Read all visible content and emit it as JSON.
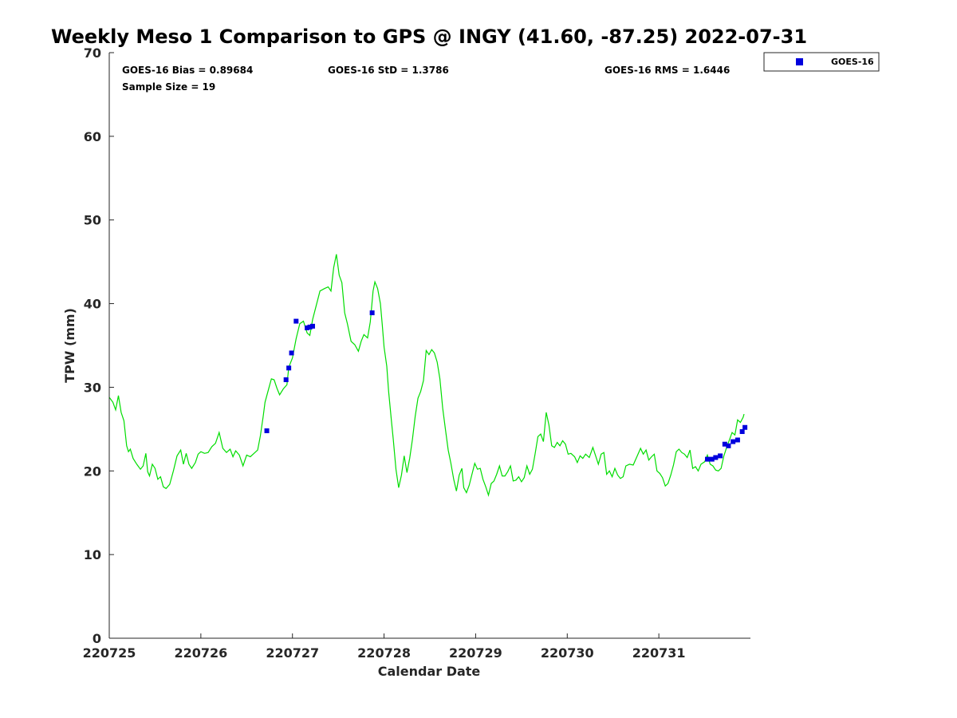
{
  "chart_data": {
    "type": "line",
    "title": "Weekly Meso 1 Comparison to GPS @ INGY (41.60, -87.25) 2022-07-31",
    "xlabel": "Calendar Date",
    "ylabel": "TPW (mm)",
    "ylim": [
      0,
      70
    ],
    "yticks": [
      0,
      10,
      20,
      30,
      40,
      50,
      60,
      70
    ],
    "xlim": [
      0,
      7
    ],
    "xticks": [
      {
        "value": 0,
        "label": "220725"
      },
      {
        "value": 1,
        "label": "220726"
      },
      {
        "value": 2,
        "label": "220727"
      },
      {
        "value": 3,
        "label": "220728"
      },
      {
        "value": 4,
        "label": "220729"
      },
      {
        "value": 5,
        "label": "220730"
      },
      {
        "value": 6,
        "label": "220731"
      }
    ],
    "grid": false,
    "legend_position": "outside top-right",
    "stats": {
      "bias": "GOES-16 Bias = 0.89684",
      "std": "GOES-16 StD = 1.3786",
      "rms": "GOES-16 RMS = 1.6446",
      "sample": "Sample Size = 19"
    },
    "series": [
      {
        "kind": "line",
        "color": "#00dd00",
        "points": [
          [
            0.0,
            28.8
          ],
          [
            0.04,
            28.2
          ],
          [
            0.07,
            27.3
          ],
          [
            0.1,
            29.0
          ],
          [
            0.13,
            27.0
          ],
          [
            0.16,
            26.0
          ],
          [
            0.19,
            23.0
          ],
          [
            0.21,
            22.3
          ],
          [
            0.23,
            22.6
          ],
          [
            0.26,
            21.5
          ],
          [
            0.3,
            20.8
          ],
          [
            0.34,
            20.2
          ],
          [
            0.37,
            20.6
          ],
          [
            0.4,
            22.1
          ],
          [
            0.42,
            19.9
          ],
          [
            0.44,
            19.4
          ],
          [
            0.47,
            20.8
          ],
          [
            0.5,
            20.3
          ],
          [
            0.53,
            19.0
          ],
          [
            0.56,
            19.3
          ],
          [
            0.59,
            18.1
          ],
          [
            0.62,
            17.9
          ],
          [
            0.66,
            18.4
          ],
          [
            0.7,
            20.0
          ],
          [
            0.74,
            21.8
          ],
          [
            0.78,
            22.5
          ],
          [
            0.81,
            20.8
          ],
          [
            0.84,
            22.1
          ],
          [
            0.87,
            20.8
          ],
          [
            0.9,
            20.3
          ],
          [
            0.94,
            21.0
          ],
          [
            0.97,
            22.0
          ],
          [
            1.0,
            22.3
          ],
          [
            1.04,
            22.1
          ],
          [
            1.08,
            22.2
          ],
          [
            1.12,
            22.9
          ],
          [
            1.16,
            23.3
          ],
          [
            1.2,
            24.6
          ],
          [
            1.24,
            22.7
          ],
          [
            1.28,
            22.2
          ],
          [
            1.32,
            22.6
          ],
          [
            1.35,
            21.7
          ],
          [
            1.38,
            22.4
          ],
          [
            1.42,
            21.9
          ],
          [
            1.46,
            20.6
          ],
          [
            1.5,
            21.9
          ],
          [
            1.54,
            21.7
          ],
          [
            1.58,
            22.1
          ],
          [
            1.62,
            22.5
          ],
          [
            1.65,
            24.2
          ],
          [
            1.68,
            26.5
          ],
          [
            1.7,
            28.2
          ],
          [
            1.73,
            29.4
          ],
          [
            1.77,
            31.0
          ],
          [
            1.8,
            30.9
          ],
          [
            1.83,
            29.9
          ],
          [
            1.86,
            29.1
          ],
          [
            1.9,
            29.8
          ],
          [
            1.94,
            30.3
          ],
          [
            1.96,
            32.4
          ],
          [
            2.0,
            33.5
          ],
          [
            2.04,
            35.8
          ],
          [
            2.08,
            37.6
          ],
          [
            2.12,
            37.9
          ],
          [
            2.16,
            36.5
          ],
          [
            2.19,
            36.2
          ],
          [
            2.22,
            38.1
          ],
          [
            2.26,
            39.8
          ],
          [
            2.3,
            41.5
          ],
          [
            2.35,
            41.8
          ],
          [
            2.39,
            42.0
          ],
          [
            2.42,
            41.5
          ],
          [
            2.45,
            44.3
          ],
          [
            2.48,
            45.9
          ],
          [
            2.51,
            43.4
          ],
          [
            2.54,
            42.5
          ],
          [
            2.57,
            38.9
          ],
          [
            2.6,
            37.6
          ],
          [
            2.64,
            35.5
          ],
          [
            2.68,
            35.1
          ],
          [
            2.72,
            34.3
          ],
          [
            2.75,
            35.5
          ],
          [
            2.78,
            36.3
          ],
          [
            2.82,
            35.9
          ],
          [
            2.85,
            37.8
          ],
          [
            2.88,
            41.5
          ],
          [
            2.9,
            42.6
          ],
          [
            2.93,
            41.8
          ],
          [
            2.96,
            40.0
          ],
          [
            2.98,
            37.5
          ],
          [
            3.0,
            34.8
          ],
          [
            3.03,
            32.5
          ],
          [
            3.05,
            29.5
          ],
          [
            3.08,
            26.0
          ],
          [
            3.1,
            23.8
          ],
          [
            3.13,
            20.2
          ],
          [
            3.16,
            18.0
          ],
          [
            3.19,
            19.5
          ],
          [
            3.22,
            21.8
          ],
          [
            3.25,
            19.8
          ],
          [
            3.28,
            21.5
          ],
          [
            3.31,
            23.8
          ],
          [
            3.34,
            26.5
          ],
          [
            3.37,
            28.7
          ],
          [
            3.4,
            29.5
          ],
          [
            3.43,
            30.8
          ],
          [
            3.46,
            34.4
          ],
          [
            3.49,
            33.9
          ],
          [
            3.52,
            34.5
          ],
          [
            3.55,
            34.1
          ],
          [
            3.58,
            33.0
          ],
          [
            3.61,
            31.0
          ],
          [
            3.64,
            27.5
          ],
          [
            3.67,
            25.0
          ],
          [
            3.7,
            22.5
          ],
          [
            3.73,
            20.9
          ],
          [
            3.76,
            19.0
          ],
          [
            3.79,
            17.6
          ],
          [
            3.82,
            19.5
          ],
          [
            3.85,
            20.3
          ],
          [
            3.87,
            18.0
          ],
          [
            3.9,
            17.4
          ],
          [
            3.93,
            18.3
          ],
          [
            3.96,
            19.6
          ],
          [
            3.99,
            20.9
          ],
          [
            4.02,
            20.2
          ],
          [
            4.05,
            20.3
          ],
          [
            4.08,
            19.0
          ],
          [
            4.11,
            18.1
          ],
          [
            4.14,
            17.1
          ],
          [
            4.17,
            18.5
          ],
          [
            4.2,
            18.8
          ],
          [
            4.23,
            19.6
          ],
          [
            4.26,
            20.6
          ],
          [
            4.29,
            19.4
          ],
          [
            4.32,
            19.4
          ],
          [
            4.35,
            19.9
          ],
          [
            4.38,
            20.6
          ],
          [
            4.41,
            18.8
          ],
          [
            4.44,
            18.9
          ],
          [
            4.47,
            19.3
          ],
          [
            4.5,
            18.7
          ],
          [
            4.53,
            19.2
          ],
          [
            4.56,
            20.6
          ],
          [
            4.59,
            19.6
          ],
          [
            4.62,
            20.2
          ],
          [
            4.65,
            22.1
          ],
          [
            4.68,
            24.1
          ],
          [
            4.71,
            24.4
          ],
          [
            4.74,
            23.5
          ],
          [
            4.77,
            27.0
          ],
          [
            4.8,
            25.5
          ],
          [
            4.83,
            23.0
          ],
          [
            4.86,
            22.8
          ],
          [
            4.89,
            23.4
          ],
          [
            4.92,
            23.0
          ],
          [
            4.95,
            23.6
          ],
          [
            4.98,
            23.2
          ],
          [
            5.01,
            22.0
          ],
          [
            5.04,
            22.1
          ],
          [
            5.08,
            21.7
          ],
          [
            5.11,
            21.0
          ],
          [
            5.14,
            21.8
          ],
          [
            5.17,
            21.5
          ],
          [
            5.2,
            22.0
          ],
          [
            5.24,
            21.6
          ],
          [
            5.28,
            22.8
          ],
          [
            5.31,
            21.8
          ],
          [
            5.34,
            20.8
          ],
          [
            5.37,
            22.0
          ],
          [
            5.4,
            22.2
          ],
          [
            5.43,
            19.6
          ],
          [
            5.46,
            20.0
          ],
          [
            5.49,
            19.3
          ],
          [
            5.52,
            20.3
          ],
          [
            5.55,
            19.5
          ],
          [
            5.58,
            19.1
          ],
          [
            5.61,
            19.3
          ],
          [
            5.64,
            20.6
          ],
          [
            5.68,
            20.8
          ],
          [
            5.72,
            20.7
          ],
          [
            5.76,
            21.7
          ],
          [
            5.8,
            22.7
          ],
          [
            5.83,
            22.0
          ],
          [
            5.86,
            22.5
          ],
          [
            5.89,
            21.3
          ],
          [
            5.92,
            21.7
          ],
          [
            5.95,
            22.0
          ],
          [
            5.98,
            20.0
          ],
          [
            6.01,
            19.7
          ],
          [
            6.04,
            19.2
          ],
          [
            6.07,
            18.2
          ],
          [
            6.1,
            18.5
          ],
          [
            6.13,
            19.5
          ],
          [
            6.16,
            20.7
          ],
          [
            6.19,
            22.3
          ],
          [
            6.22,
            22.6
          ],
          [
            6.25,
            22.2
          ],
          [
            6.28,
            22.0
          ],
          [
            6.31,
            21.6
          ],
          [
            6.34,
            22.5
          ],
          [
            6.37,
            20.3
          ],
          [
            6.4,
            20.5
          ],
          [
            6.43,
            20.0
          ],
          [
            6.46,
            20.8
          ],
          [
            6.5,
            21.1
          ],
          [
            6.53,
            21.9
          ],
          [
            6.56,
            20.8
          ],
          [
            6.59,
            20.6
          ],
          [
            6.62,
            20.1
          ],
          [
            6.65,
            20.0
          ],
          [
            6.68,
            20.3
          ],
          [
            6.71,
            21.8
          ],
          [
            6.74,
            22.8
          ],
          [
            6.77,
            23.7
          ],
          [
            6.8,
            24.6
          ],
          [
            6.83,
            24.3
          ],
          [
            6.86,
            26.1
          ],
          [
            6.89,
            25.8
          ],
          [
            6.92,
            26.4
          ],
          [
            6.93,
            26.8
          ]
        ]
      },
      {
        "name": "GOES-16",
        "kind": "scatter",
        "color": "#0000dd",
        "points": [
          [
            1.72,
            24.8
          ],
          [
            1.93,
            30.9
          ],
          [
            1.96,
            32.3
          ],
          [
            1.99,
            34.1
          ],
          [
            2.04,
            37.9
          ],
          [
            2.16,
            37.1
          ],
          [
            2.19,
            37.2
          ],
          [
            2.22,
            37.3
          ],
          [
            2.87,
            38.9
          ],
          [
            6.53,
            21.4
          ],
          [
            6.58,
            21.4
          ],
          [
            6.62,
            21.6
          ],
          [
            6.67,
            21.8
          ],
          [
            6.72,
            23.2
          ],
          [
            6.76,
            23.0
          ],
          [
            6.81,
            23.5
          ],
          [
            6.86,
            23.7
          ],
          [
            6.91,
            24.7
          ],
          [
            6.94,
            25.2
          ]
        ]
      }
    ]
  }
}
